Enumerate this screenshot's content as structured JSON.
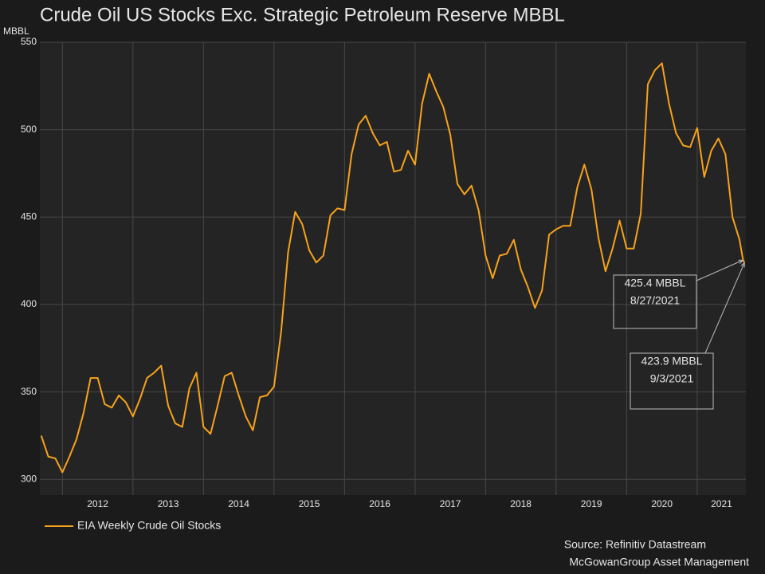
{
  "chart_data": {
    "type": "line",
    "title": "Crude Oil US Stocks Exc. Strategic Petroleum Reserve MBBL",
    "y_label": "MBBL",
    "x": [
      2011.7,
      2011.8,
      2011.9,
      2012.0,
      2012.1,
      2012.2,
      2012.3,
      2012.4,
      2012.5,
      2012.6,
      2012.7,
      2012.8,
      2012.9,
      2013.0,
      2013.1,
      2013.2,
      2013.3,
      2013.4,
      2013.5,
      2013.6,
      2013.7,
      2013.8,
      2013.9,
      2014.0,
      2014.1,
      2014.2,
      2014.3,
      2014.4,
      2014.5,
      2014.6,
      2014.7,
      2014.8,
      2014.9,
      2015.0,
      2015.1,
      2015.2,
      2015.3,
      2015.4,
      2015.5,
      2015.6,
      2015.7,
      2015.8,
      2015.9,
      2016.0,
      2016.1,
      2016.2,
      2016.3,
      2016.4,
      2016.5,
      2016.6,
      2016.7,
      2016.8,
      2016.9,
      2017.0,
      2017.1,
      2017.2,
      2017.3,
      2017.4,
      2017.5,
      2017.6,
      2017.7,
      2017.8,
      2017.9,
      2018.0,
      2018.1,
      2018.2,
      2018.3,
      2018.4,
      2018.5,
      2018.6,
      2018.7,
      2018.8,
      2018.9,
      2019.0,
      2019.1,
      2019.2,
      2019.3,
      2019.4,
      2019.5,
      2019.6,
      2019.7,
      2019.8,
      2019.9,
      2020.0,
      2020.1,
      2020.2,
      2020.3,
      2020.4,
      2020.5,
      2020.6,
      2020.7,
      2020.8,
      2020.9,
      2021.0,
      2021.1,
      2021.2,
      2021.3,
      2021.4,
      2021.5,
      2021.6,
      2021.65,
      2021.67
    ],
    "series": [
      {
        "name": "EIA Weekly Crude Oil Stocks",
        "color": "#f7a21b",
        "values": [
          325,
          313,
          312,
          304,
          313,
          323,
          338,
          358,
          358,
          343,
          341,
          348,
          344,
          336,
          346,
          358,
          361,
          365,
          342,
          332,
          330,
          352,
          361,
          330,
          326,
          342,
          359,
          361,
          348,
          336,
          328,
          347,
          348,
          353,
          384,
          430,
          453,
          446,
          431,
          424,
          428,
          451,
          455,
          454,
          486,
          503,
          508,
          498,
          491,
          493,
          476,
          477,
          488,
          480,
          515,
          532,
          522,
          513,
          497,
          469,
          463,
          468,
          454,
          428,
          415,
          428,
          429,
          437,
          420,
          410,
          398,
          408,
          440,
          443,
          445,
          445,
          467,
          480,
          466,
          438,
          419,
          432,
          448,
          432,
          432,
          452,
          526,
          534,
          538,
          515,
          498,
          491,
          490,
          501,
          473,
          488,
          495,
          486,
          450,
          437,
          425.4,
          423.9
        ]
      }
    ],
    "xlim": [
      2011.68,
      2021.69
    ],
    "xticks": [
      2012,
      2013,
      2014,
      2015,
      2016,
      2017,
      2018,
      2019,
      2020,
      2021
    ],
    "ylim": [
      291,
      550
    ],
    "yticks": [
      300,
      350,
      400,
      450,
      500,
      550
    ],
    "grid": true,
    "annotations": [
      {
        "lines": [
          "425.4 MBBL",
          "8/27/2021"
        ]
      },
      {
        "lines": [
          "423.9 MBBL",
          "9/3/2021"
        ]
      }
    ],
    "source": [
      "Source: Refinitiv Datastream",
      "McGowanGroup Asset Management"
    ]
  }
}
